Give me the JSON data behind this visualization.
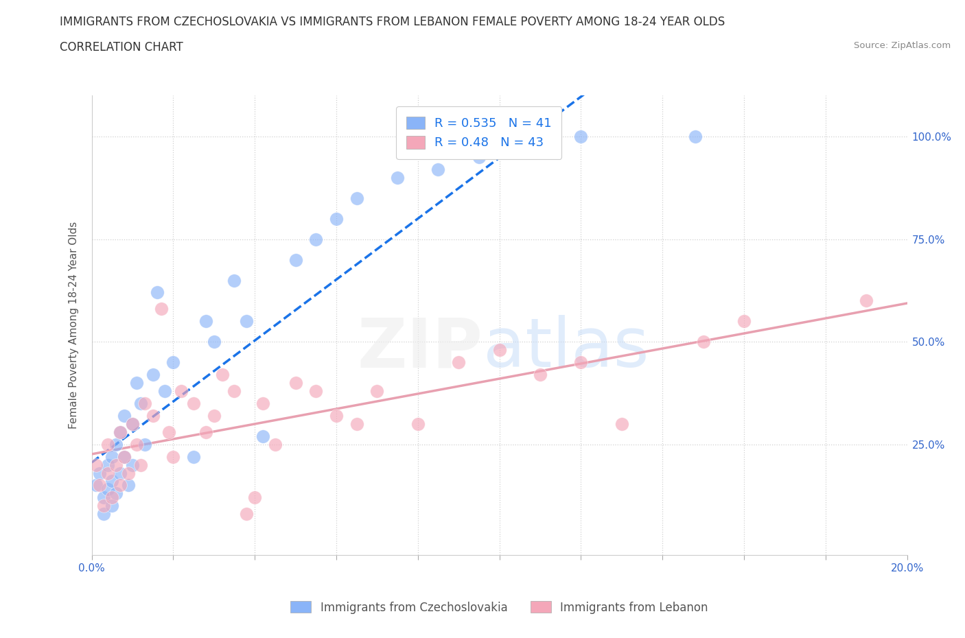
{
  "title": "IMMIGRANTS FROM CZECHOSLOVAKIA VS IMMIGRANTS FROM LEBANON FEMALE POVERTY AMONG 18-24 YEAR OLDS",
  "subtitle": "CORRELATION CHART",
  "source": "Source: ZipAtlas.com",
  "legend_label1": "Immigrants from Czechoslovakia",
  "legend_label2": "Immigrants from Lebanon",
  "ylabel": "Female Poverty Among 18-24 Year Olds",
  "xlim": [
    0.0,
    0.2
  ],
  "ylim": [
    -0.02,
    1.1
  ],
  "czech_color": "#8ab4f8",
  "lebanon_color": "#f4a7b9",
  "czech_line_color": "#1a73e8",
  "lebanon_line_color": "#e8a0b0",
  "czech_R": 0.535,
  "czech_N": 41,
  "lebanon_R": 0.48,
  "lebanon_N": 43,
  "x_tick_positions": [
    0.0,
    0.02,
    0.04,
    0.06,
    0.08,
    0.1,
    0.12,
    0.14,
    0.16,
    0.18,
    0.2
  ],
  "y_tick_positions": [
    0.0,
    0.25,
    0.5,
    0.75,
    1.0
  ],
  "y_tick_labels": [
    "",
    "25.0%",
    "50.0%",
    "75.0%",
    "100.0%"
  ],
  "czech_x": [
    0.001,
    0.002,
    0.003,
    0.003,
    0.004,
    0.004,
    0.005,
    0.005,
    0.005,
    0.006,
    0.006,
    0.007,
    0.007,
    0.008,
    0.008,
    0.009,
    0.01,
    0.01,
    0.011,
    0.012,
    0.013,
    0.015,
    0.016,
    0.018,
    0.02,
    0.025,
    0.028,
    0.03,
    0.035,
    0.038,
    0.042,
    0.05,
    0.055,
    0.06,
    0.065,
    0.075,
    0.085,
    0.095,
    0.105,
    0.12,
    0.148
  ],
  "czech_y": [
    0.15,
    0.18,
    0.08,
    0.12,
    0.14,
    0.2,
    0.1,
    0.22,
    0.16,
    0.25,
    0.13,
    0.28,
    0.18,
    0.32,
    0.22,
    0.15,
    0.3,
    0.2,
    0.4,
    0.35,
    0.25,
    0.42,
    0.62,
    0.38,
    0.45,
    0.22,
    0.55,
    0.5,
    0.65,
    0.55,
    0.27,
    0.7,
    0.75,
    0.8,
    0.85,
    0.9,
    0.92,
    0.95,
    0.97,
    1.0,
    1.0
  ],
  "lebanon_x": [
    0.001,
    0.002,
    0.003,
    0.004,
    0.004,
    0.005,
    0.006,
    0.007,
    0.007,
    0.008,
    0.009,
    0.01,
    0.011,
    0.012,
    0.013,
    0.015,
    0.017,
    0.019,
    0.02,
    0.022,
    0.025,
    0.028,
    0.03,
    0.032,
    0.035,
    0.038,
    0.04,
    0.042,
    0.045,
    0.05,
    0.055,
    0.06,
    0.065,
    0.07,
    0.08,
    0.09,
    0.1,
    0.11,
    0.12,
    0.13,
    0.15,
    0.16,
    0.19
  ],
  "lebanon_y": [
    0.2,
    0.15,
    0.1,
    0.25,
    0.18,
    0.12,
    0.2,
    0.15,
    0.28,
    0.22,
    0.18,
    0.3,
    0.25,
    0.2,
    0.35,
    0.32,
    0.58,
    0.28,
    0.22,
    0.38,
    0.35,
    0.28,
    0.32,
    0.42,
    0.38,
    0.08,
    0.12,
    0.35,
    0.25,
    0.4,
    0.38,
    0.32,
    0.3,
    0.38,
    0.3,
    0.45,
    0.48,
    0.42,
    0.45,
    0.3,
    0.5,
    0.55,
    0.6
  ]
}
